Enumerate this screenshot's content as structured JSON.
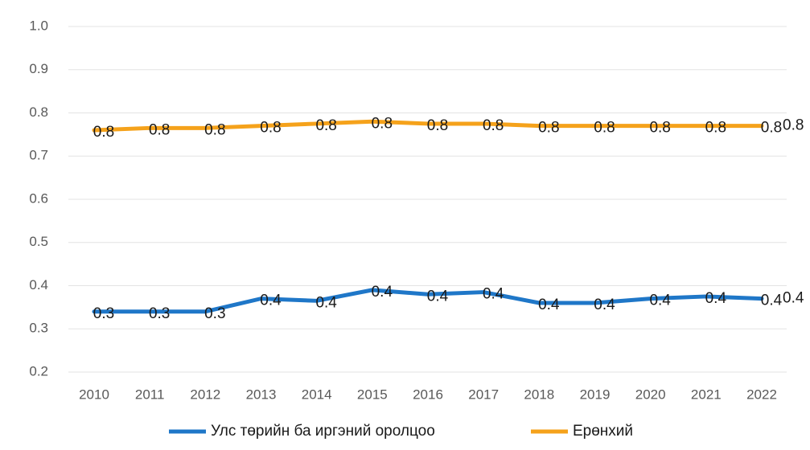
{
  "chart_data": {
    "type": "line",
    "categories": [
      "2010",
      "2011",
      "2012",
      "2013",
      "2014",
      "2015",
      "2016",
      "2017",
      "2018",
      "2019",
      "2020",
      "2021",
      "2022"
    ],
    "ylim": [
      0.2,
      1
    ],
    "yticks": [
      0.2,
      0.3,
      0.4,
      0.5,
      0.6,
      0.7,
      0.8,
      0.9,
      {
        "value": 1,
        "label": "1.0"
      }
    ],
    "grid": true,
    "legend": "bottom",
    "series": [
      {
        "name": "Улс төрийн ба иргэний оролцоо",
        "color": "#1f77c8",
        "values": [
          0.34,
          0.34,
          0.34,
          0.37,
          0.365,
          0.39,
          0.38,
          0.385,
          0.36,
          0.36,
          0.37,
          0.375,
          0.37
        ],
        "value_labels": [
          "0.3",
          "0.3",
          "0.3",
          "0.4",
          "0.4",
          "0.4",
          "0.4",
          "0.4",
          "0.4",
          "0.4",
          "0.4",
          "0.4",
          "0.4"
        ],
        "last_label": "0.4"
      },
      {
        "name": "Ерөнхий",
        "color": "#f5a21b",
        "values": [
          0.76,
          0.765,
          0.765,
          0.77,
          0.775,
          0.78,
          0.775,
          0.775,
          0.77,
          0.77,
          0.77,
          0.77,
          0.77
        ],
        "value_labels": [
          "0.8",
          "0.8",
          "0.8",
          "0.8",
          "0.8",
          "0.8",
          "0.8",
          "0.8",
          "0.8",
          "0.8",
          "0.8",
          "0.8",
          "0.8"
        ],
        "last_label": "0.8"
      }
    ]
  }
}
